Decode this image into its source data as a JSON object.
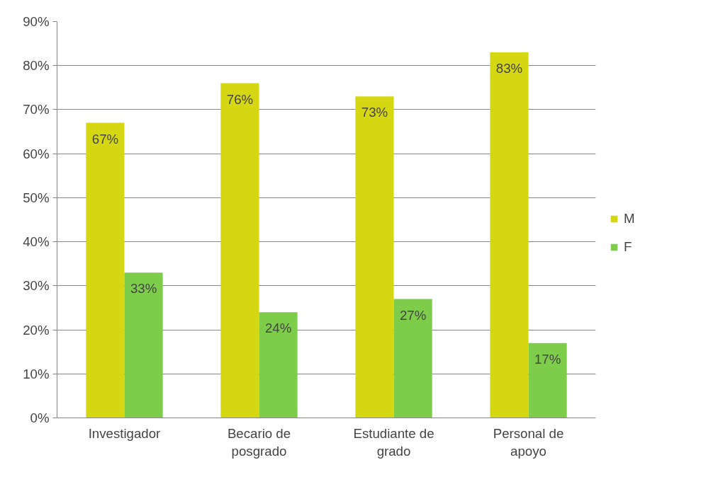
{
  "chart_data": {
    "type": "bar",
    "categories": [
      "Investigador",
      "Becario de posgrado",
      "Estudiante de grado",
      "Personal de apoyo"
    ],
    "series": [
      {
        "name": "M",
        "color": "#d4d712",
        "values": [
          67,
          76,
          73,
          83
        ],
        "value_labels": [
          "67%",
          "76%",
          "73%",
          "83%"
        ]
      },
      {
        "name": "F",
        "color": "#7dcd4b",
        "values": [
          33,
          24,
          27,
          17
        ],
        "value_labels": [
          "33%",
          "24%",
          "27%",
          "17%"
        ]
      }
    ],
    "ylim": [
      0,
      90
    ],
    "yticks": [
      {
        "value": 0,
        "label": "0%"
      },
      {
        "value": 10,
        "label": "10%"
      },
      {
        "value": 20,
        "label": "20%"
      },
      {
        "value": 30,
        "label": "30%"
      },
      {
        "value": 40,
        "label": "40%"
      },
      {
        "value": 50,
        "label": "50%"
      },
      {
        "value": 60,
        "label": "60%"
      },
      {
        "value": 70,
        "label": "70%"
      },
      {
        "value": 80,
        "label": "80%"
      },
      {
        "value": 90,
        "label": "90%"
      }
    ],
    "grid": "y",
    "legend": "right"
  }
}
